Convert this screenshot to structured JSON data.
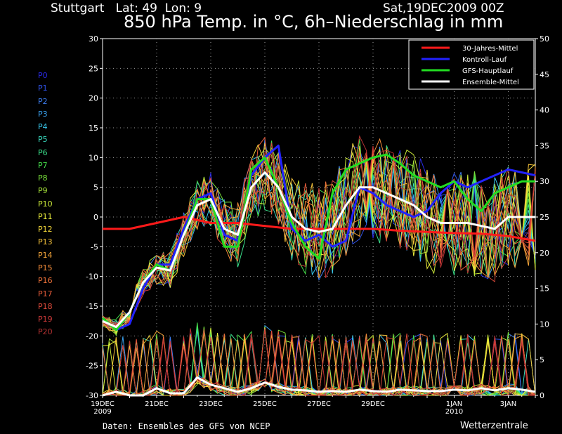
{
  "header": {
    "location": "Stuttgart   Lat: 49  Lon: 9",
    "date": "Sat,19DEC2009 00Z",
    "title": "850 hPa Temp. in °C, 6h–Niederschlag in mm"
  },
  "members": [
    {
      "label": "P0",
      "color": "#2a2ae6"
    },
    {
      "label": "P1",
      "color": "#2f52e8"
    },
    {
      "label": "P2",
      "color": "#3d7ef0"
    },
    {
      "label": "P3",
      "color": "#3aa2f0"
    },
    {
      "label": "P4",
      "color": "#39c6ea"
    },
    {
      "label": "P5",
      "color": "#39dcc0"
    },
    {
      "label": "P6",
      "color": "#3adf8a"
    },
    {
      "label": "P7",
      "color": "#45de4b"
    },
    {
      "label": "P8",
      "color": "#78e03a"
    },
    {
      "label": "P9",
      "color": "#a6e23a"
    },
    {
      "label": "P10",
      "color": "#ccea3a"
    },
    {
      "label": "P11",
      "color": "#ecee3c"
    },
    {
      "label": "P12",
      "color": "#f5d93a"
    },
    {
      "label": "P13",
      "color": "#f5c23a"
    },
    {
      "label": "P14",
      "color": "#f5a63a"
    },
    {
      "label": "P15",
      "color": "#f38c3a"
    },
    {
      "label": "P16",
      "color": "#ef733a"
    },
    {
      "label": "P17",
      "color": "#e95c3a"
    },
    {
      "label": "P18",
      "color": "#de4a3a"
    },
    {
      "label": "P19",
      "color": "#cf3a3a"
    },
    {
      "label": "P20",
      "color": "#b53232"
    }
  ],
  "footer": {
    "credit": "Daten: Ensembles des GFS von NCEP",
    "brand": "Wetterzentrale"
  },
  "chart_data": {
    "type": "line",
    "y_left": {
      "range": [
        -30,
        30
      ],
      "ticks": [
        30,
        25,
        20,
        15,
        10,
        5,
        0,
        -5,
        -10,
        -15,
        -20,
        -25,
        -30
      ]
    },
    "y_right": {
      "range": [
        0,
        50
      ],
      "ticks": [
        50,
        45,
        40,
        35,
        30,
        25,
        20,
        15,
        10,
        5,
        0
      ]
    },
    "x_range_days": [
      0,
      16
    ],
    "x_ticks": [
      {
        "day": 0,
        "label": "19DEC",
        "sub": "2009"
      },
      {
        "day": 2,
        "label": "21DEC",
        "sub": ""
      },
      {
        "day": 4,
        "label": "23DEC",
        "sub": ""
      },
      {
        "day": 6,
        "label": "25DEC",
        "sub": ""
      },
      {
        "day": 8,
        "label": "27DEC",
        "sub": ""
      },
      {
        "day": 10,
        "label": "29DEC",
        "sub": ""
      },
      {
        "day": 13,
        "label": "1JAN",
        "sub": "2010"
      },
      {
        "day": 15,
        "label": "3JAN",
        "sub": ""
      }
    ],
    "grid": true,
    "legend_position": "top-right",
    "series": [
      {
        "name": "30-Jahres-Mittel",
        "color": "#ff1a1a",
        "width": 3,
        "axis": "temperature",
        "x": [
          0,
          1,
          2,
          3,
          4,
          5,
          6,
          7,
          8,
          9,
          10,
          11,
          12,
          13,
          14,
          15,
          16
        ],
        "y": [
          -2,
          -2,
          -1,
          0,
          -1,
          -1,
          -1.5,
          -2,
          -2,
          -2,
          -2,
          -2.3,
          -2.5,
          -2.7,
          -2.8,
          -3.2,
          -4
        ]
      },
      {
        "name": "Kontroll-Lauf",
        "color": "#2222ff",
        "width": 3,
        "axis": "temperature",
        "x": [
          0,
          0.5,
          1,
          1.5,
          2,
          2.5,
          3,
          3.5,
          4,
          4.5,
          5,
          5.5,
          6,
          6.5,
          7,
          7.5,
          8,
          8.5,
          9,
          9.5,
          10,
          10.5,
          11,
          11.5,
          12,
          12.5,
          13,
          13.5,
          14,
          14.5,
          15,
          15.5,
          16
        ],
        "y": [
          -17,
          -19,
          -18,
          -12,
          -8,
          -8,
          -2,
          3,
          4,
          -3,
          -4,
          7,
          10,
          12,
          -2,
          -4,
          -3,
          -5,
          -4,
          5,
          4,
          2,
          1,
          0,
          1,
          4,
          6,
          5,
          6,
          7,
          8,
          7.5,
          7
        ]
      },
      {
        "name": "GFS-Hauptlauf",
        "color": "#22dd22",
        "width": 3,
        "axis": "temperature",
        "x": [
          0,
          0.5,
          1,
          1.5,
          2,
          2.5,
          3,
          3.5,
          4,
          4.5,
          5,
          5.5,
          6,
          6.5,
          7,
          7.5,
          8,
          8.5,
          9,
          9.5,
          10,
          10.5,
          11,
          11.5,
          12,
          12.5,
          13,
          13.5,
          14,
          14.5,
          15,
          15.5,
          16
        ],
        "y": [
          -17,
          -19,
          -16,
          -11,
          -8,
          -9,
          -3,
          3,
          3,
          -5,
          -5,
          8,
          10,
          5,
          -1,
          -5,
          -7,
          4,
          8,
          9,
          10,
          10.5,
          9,
          7,
          6,
          5,
          6,
          3,
          1,
          4,
          5,
          6,
          6
        ]
      },
      {
        "name": "Ensemble-Mittel",
        "color": "#ffffff",
        "width": 3,
        "axis": "temperature",
        "x": [
          0,
          0.5,
          1,
          1.5,
          2,
          2.5,
          3,
          3.5,
          4,
          4.5,
          5,
          5.5,
          6,
          6.5,
          7,
          7.5,
          8,
          8.5,
          9,
          9.5,
          10,
          10.5,
          11,
          11.5,
          12,
          12.5,
          13,
          13.5,
          14,
          14.5,
          15,
          15.5,
          16
        ],
        "y": [
          -17.5,
          -18.5,
          -16,
          -11,
          -8.5,
          -9,
          -3,
          2,
          3,
          -2,
          -3,
          5,
          7.5,
          5,
          0,
          -2,
          -2.5,
          -2,
          2,
          5,
          5,
          4,
          3,
          2,
          0,
          -1,
          -1,
          -1,
          -1.5,
          -2,
          0,
          0,
          0
        ]
      },
      {
        "name": "Ensemble-Mittel Niederschlag",
        "color": "#ffffff",
        "width": 3,
        "axis": "precipitation",
        "x": [
          0,
          0.5,
          1,
          1.5,
          2,
          2.5,
          3,
          3.5,
          4,
          4.5,
          5,
          5.5,
          6,
          6.5,
          7,
          7.5,
          8,
          8.5,
          9,
          9.5,
          10,
          10.5,
          11,
          11.5,
          12,
          12.5,
          13,
          13.5,
          14,
          14.5,
          15,
          15.5,
          16
        ],
        "y": [
          0,
          0.5,
          0,
          0,
          1,
          0.3,
          0.3,
          2.5,
          1.5,
          1,
          0.5,
          1,
          1.8,
          1.2,
          0.8,
          0.7,
          0.5,
          0.6,
          0.5,
          0.8,
          0.6,
          0.5,
          0.8,
          0.7,
          0.6,
          0.6,
          0.8,
          0.7,
          1.0,
          0.7,
          1.0,
          0.8,
          0.5
        ]
      }
    ],
    "legend": [
      {
        "label": "30-Jahres-Mittel",
        "color": "#ff1a1a"
      },
      {
        "label": "Kontroll-Lauf",
        "color": "#2222ff"
      },
      {
        "label": "GFS-Hauptlauf",
        "color": "#22dd22"
      },
      {
        "label": "Ensemble-Mittel",
        "color": "#ffffff"
      }
    ]
  }
}
